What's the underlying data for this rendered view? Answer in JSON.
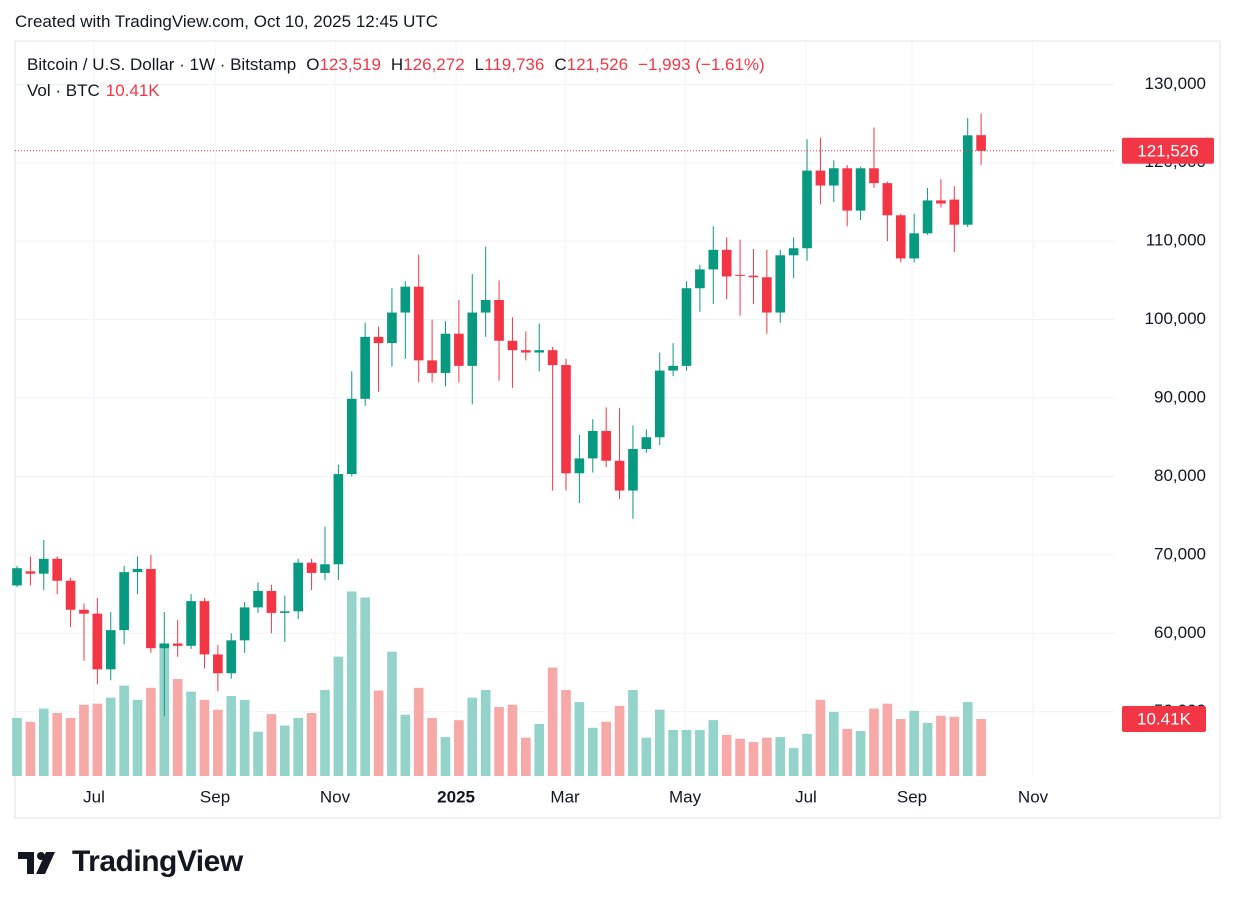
{
  "header": "Created with TradingView.com, Oct 10, 2025 12:45 UTC",
  "brand": "TradingView",
  "chart_data": {
    "type": "candlestick",
    "up_color": "#089981",
    "down_color": "#f23645",
    "volume_up_color": "#93d3c9",
    "volume_down_color": "#f7a9a8",
    "grid": true,
    "series": [
      {
        "name": "Bitcoin / U.S. Dollar · 1W · Bitstamp",
        "open": [
          66100,
          67900,
          67600,
          69500,
          66700,
          63000,
          62500,
          55400,
          60400,
          67800,
          68200,
          58100,
          58700,
          58400,
          64100,
          57300,
          54900,
          59100,
          63300,
          65400,
          62600,
          62800,
          69000,
          67700,
          68800,
          80300,
          89900,
          97800,
          97000,
          100900,
          104200,
          94800,
          93200,
          98200,
          94100,
          100900,
          102500,
          97300,
          96100,
          95800,
          96100,
          94200,
          80400,
          82300,
          85800,
          82000,
          78200,
          83500,
          85000,
          93500,
          94100,
          104000,
          106400,
          108900,
          105700,
          105600,
          105400,
          100900,
          108200,
          109100,
          119000,
          117100,
          119300,
          113900,
          119300,
          117400,
          113300,
          107800,
          111000,
          115200,
          115300,
          112100,
          123519
        ],
        "high": [
          68600,
          69800,
          71900,
          69800,
          67100,
          63800,
          64500,
          62700,
          68600,
          69800,
          70000,
          62700,
          61700,
          65000,
          64500,
          58500,
          60000,
          64000,
          66500,
          66200,
          64800,
          69500,
          69500,
          73600,
          81500,
          93400,
          99600,
          99100,
          104000,
          104900,
          108300,
          100000,
          99800,
          102500,
          105800,
          109300,
          105000,
          100300,
          98500,
          99500,
          96500,
          95000,
          85300,
          87300,
          88800,
          88700,
          86500,
          86000,
          95800,
          97000,
          104900,
          107000,
          111900,
          110500,
          110200,
          109000,
          108900,
          108900,
          110500,
          123000,
          123200,
          120300,
          119700,
          119500,
          124500,
          117600,
          113500,
          113500,
          116800,
          117900,
          117000,
          125700,
          126272
        ],
        "low": [
          65900,
          66100,
          65500,
          65000,
          60800,
          56500,
          53500,
          54000,
          58600,
          65000,
          57500,
          49400,
          57000,
          58000,
          55500,
          52600,
          54200,
          57500,
          62600,
          60000,
          58900,
          61800,
          65500,
          66800,
          66800,
          80000,
          89000,
          90800,
          94000,
          95000,
          92000,
          92000,
          91500,
          92000,
          89200,
          97800,
          92200,
          91300,
          94800,
          93400,
          78200,
          78200,
          76600,
          80500,
          81200,
          77100,
          74600,
          83000,
          84000,
          92800,
          93500,
          101000,
          102000,
          102600,
          100500,
          102000,
          98200,
          99600,
          105300,
          107500,
          114700,
          115000,
          111900,
          112700,
          116800,
          110000,
          107300,
          107300,
          110800,
          114300,
          108600,
          111800,
          119736
        ],
        "close": [
          68300,
          67600,
          69500,
          66700,
          63000,
          62500,
          55400,
          60400,
          67800,
          68200,
          58100,
          58700,
          58400,
          64100,
          57300,
          54900,
          59100,
          63300,
          65400,
          62600,
          62800,
          69000,
          67700,
          68800,
          80300,
          89900,
          97800,
          97000,
          100900,
          104200,
          94800,
          93200,
          98200,
          94100,
          100900,
          102500,
          97300,
          96100,
          95800,
          96100,
          94200,
          80400,
          82300,
          85800,
          82000,
          78200,
          83500,
          85000,
          93500,
          94100,
          104000,
          106400,
          108900,
          105500,
          105600,
          105400,
          100900,
          108200,
          109100,
          119000,
          117100,
          119300,
          113900,
          119300,
          117400,
          113300,
          107800,
          111000,
          115200,
          114800,
          112100,
          123500,
          121526
        ]
      }
    ],
    "legend": [
      {
        "key": "O",
        "label": "123,519"
      },
      {
        "key": "H",
        "label": "126,272"
      },
      {
        "key": "L",
        "label": "119,736"
      },
      {
        "key": "C",
        "label": "121,526"
      }
    ],
    "change_label": "−1,993 (−1.61%)",
    "last_price_label": "121,526",
    "volume": {
      "name": "Vol · BTC",
      "value_label": "10.41K",
      "values": [
        10600,
        9900,
        12300,
        11500,
        10600,
        13000,
        13200,
        14300,
        16500,
        13900,
        16100,
        24000,
        17700,
        15400,
        13900,
        12100,
        14600,
        13900,
        8100,
        11300,
        9200,
        10600,
        11500,
        15700,
        21800,
        33700,
        32600,
        15600,
        22700,
        11200,
        16100,
        10600,
        7100,
        10200,
        14300,
        15700,
        12600,
        13000,
        7000,
        9500,
        19800,
        15700,
        13500,
        8800,
        9900,
        12800,
        15700,
        7000,
        12100,
        8400,
        8400,
        8400,
        10200,
        7500,
        6800,
        6200,
        7000,
        7100,
        5100,
        7700,
        13900,
        11700,
        8600,
        8200,
        12300,
        13200,
        10400,
        11900,
        9700,
        11000,
        10800,
        13500,
        10410
      ],
      "ylim": [
        0,
        134000
      ]
    },
    "xlim": [
      -0.15,
      82
    ],
    "xticks": [
      {
        "value": 5.75,
        "label": "Jul"
      },
      {
        "value": 14.79,
        "label": "Sep"
      },
      {
        "value": 23.75,
        "label": "Nov"
      },
      {
        "value": 32.79,
        "label": "2025"
      },
      {
        "value": 40.93,
        "label": "Mar"
      },
      {
        "value": 49.89,
        "label": "May"
      },
      {
        "value": 58.92,
        "label": "Jul"
      },
      {
        "value": 66.84,
        "label": "Sep"
      },
      {
        "value": 75.88,
        "label": "Nov"
      }
    ],
    "ylim": [
      41800,
      135400
    ],
    "yticks": [
      {
        "value": 50000,
        "label": "50,000"
      },
      {
        "value": 60000,
        "label": "60,000"
      },
      {
        "value": 70000,
        "label": "70,000"
      },
      {
        "value": 80000,
        "label": "80,000"
      },
      {
        "value": 90000,
        "label": "90,000"
      },
      {
        "value": 100000,
        "label": "100,000"
      },
      {
        "value": 110000,
        "label": "110,000"
      },
      {
        "value": 120000,
        "label": "120,000"
      },
      {
        "value": 130000,
        "label": "130,000"
      }
    ]
  }
}
